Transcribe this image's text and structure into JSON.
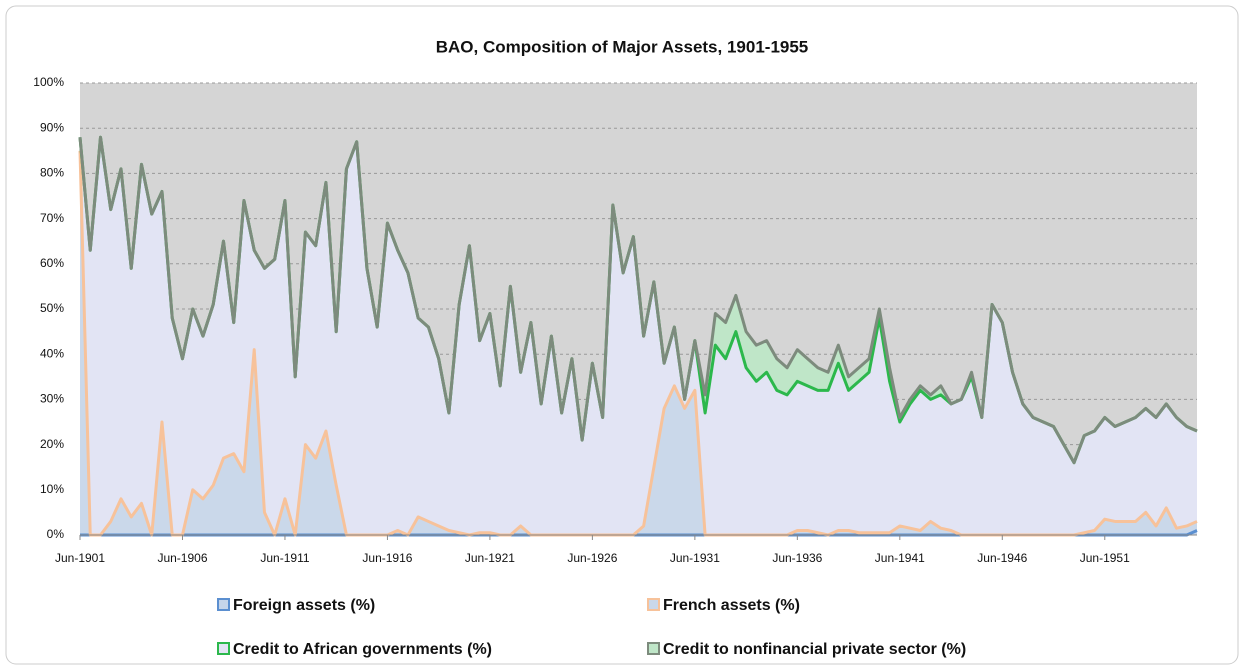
{
  "chart_data": {
    "type": "stacked_area",
    "title": "BAO, Composition of Major Assets, 1901-1955",
    "categories": [
      "Jun-1901",
      null,
      null,
      null,
      null,
      null,
      null,
      null,
      null,
      null,
      "Jun-1906",
      null,
      null,
      null,
      null,
      null,
      null,
      null,
      null,
      null,
      "Jun-1911",
      null,
      null,
      null,
      null,
      null,
      null,
      null,
      null,
      null,
      "Jun-1916",
      null,
      null,
      null,
      null,
      null,
      null,
      null,
      null,
      null,
      "Jun-1921",
      null,
      null,
      null,
      null,
      null,
      null,
      null,
      null,
      null,
      "Jun-1926",
      null,
      null,
      null,
      null,
      null,
      null,
      null,
      null,
      null,
      "Jun-1931",
      null,
      null,
      null,
      null,
      null,
      null,
      null,
      null,
      null,
      "Jun-1936",
      null,
      null,
      null,
      null,
      null,
      null,
      null,
      null,
      null,
      "Jun-1941",
      null,
      null,
      null,
      null,
      null,
      null,
      null,
      null,
      null,
      "Jun-1946",
      null,
      null,
      null,
      null,
      null,
      null,
      null,
      null,
      null,
      "Jun-1951",
      null,
      null,
      null,
      null,
      null,
      null,
      null,
      null,
      null
    ],
    "series": [
      {
        "name": "Foreign assets (%)",
        "color": "#5b8fd0",
        "fill": "#c5d5ea",
        "values": [
          0,
          0,
          0,
          0,
          0,
          0,
          0,
          0,
          0,
          0,
          0,
          0,
          0,
          0,
          0,
          0,
          0,
          0,
          0,
          0,
          0,
          0,
          0,
          0,
          0,
          0,
          0,
          0,
          0,
          0,
          0,
          0,
          0,
          0,
          0,
          0,
          0,
          0,
          0,
          0,
          0,
          0,
          0,
          0,
          0,
          0,
          0,
          0,
          0,
          0,
          0,
          0,
          0,
          0,
          0,
          0,
          0,
          0,
          0,
          0,
          0,
          0,
          0,
          0,
          0,
          0,
          0,
          0,
          0,
          0,
          0,
          0,
          0,
          0,
          0,
          0,
          0,
          0,
          0,
          0,
          0,
          0,
          0,
          0,
          0,
          0,
          0,
          0,
          0,
          0,
          0,
          0,
          0,
          0,
          0,
          0,
          0,
          0,
          0,
          0,
          0,
          0,
          0,
          0,
          0,
          0,
          0,
          0,
          0,
          1
        ]
      },
      {
        "name": "French assets (%)",
        "color": "#f7c29a",
        "fill": "#cad8ea",
        "values": [
          85,
          0,
          0,
          3,
          8,
          4,
          7,
          0,
          25,
          0,
          0,
          10,
          8,
          11,
          17,
          18,
          14,
          41,
          5,
          0,
          8,
          0,
          20,
          17,
          23,
          11,
          0,
          0,
          0,
          0,
          0,
          1,
          0,
          4,
          3,
          2,
          1,
          0.5,
          0,
          0.5,
          0.5,
          0,
          0,
          2,
          0,
          0,
          0,
          0,
          0,
          0,
          0,
          0,
          0,
          0,
          0,
          2,
          15,
          28,
          33,
          28,
          32,
          0,
          0,
          0,
          0,
          0,
          0,
          0,
          0,
          0,
          1,
          1,
          0.5,
          0,
          1,
          1,
          0.5,
          0.5,
          0.5,
          0.5,
          2,
          1.5,
          1,
          3,
          1.5,
          1,
          0,
          0,
          0,
          0,
          0,
          0,
          0,
          0,
          0,
          0,
          0,
          0,
          0.5,
          1,
          3.5,
          3,
          3,
          3,
          5,
          2,
          6,
          1.5,
          2,
          2
        ]
      },
      {
        "name": "Credit to African governments (%)",
        "color": "#2cb84c",
        "fill": "#e2e4f4",
        "values": [
          3,
          63,
          88,
          69,
          73,
          55,
          75,
          71,
          51,
          48,
          39,
          40,
          36,
          40,
          48,
          29,
          60,
          22,
          54,
          61,
          66,
          35,
          47,
          47,
          55,
          34,
          81,
          87,
          59,
          46,
          69,
          62,
          58,
          44,
          43,
          37,
          26,
          50.5,
          64,
          42.5,
          48.5,
          33,
          55,
          34,
          47,
          29,
          44,
          27,
          39,
          21,
          38,
          26,
          73,
          58,
          66,
          42,
          41,
          10,
          13,
          2,
          11,
          27,
          42,
          39,
          45,
          37,
          34,
          36,
          32,
          31,
          33,
          32,
          31.5,
          32,
          37,
          31,
          33.5,
          35.5,
          47.5,
          33.5,
          23,
          27.5,
          31,
          27,
          29.5,
          28,
          30,
          35,
          26,
          51,
          47,
          36,
          29,
          26,
          25,
          24,
          20,
          16,
          21.5,
          22,
          22.5,
          21,
          22,
          23,
          23,
          24,
          23,
          24.5,
          22,
          20
        ]
      },
      {
        "name": "Credit to nonfinancial private sector (%)",
        "color": "#7d8b7d",
        "fill": "#bfe6c8",
        "values": [
          0,
          0,
          0,
          0,
          0,
          0,
          0,
          0,
          0,
          0,
          0,
          0,
          0,
          0,
          0,
          0,
          0,
          0,
          0,
          0,
          0,
          0,
          0,
          0,
          0,
          0,
          0,
          0,
          0,
          0,
          0,
          0,
          0,
          0,
          0,
          0,
          0,
          0,
          0,
          0,
          0,
          0,
          0,
          0,
          0,
          0,
          0,
          0,
          0,
          0,
          0,
          0,
          0,
          0,
          0,
          0,
          0,
          0,
          0,
          0,
          0,
          4,
          7,
          8,
          8,
          8,
          8,
          7,
          7,
          6,
          7,
          6,
          5,
          4,
          4,
          3,
          3,
          3,
          2,
          3,
          1,
          1,
          1,
          1,
          2,
          0,
          0,
          1,
          0,
          0,
          0,
          0,
          0,
          0,
          0,
          0,
          0,
          0,
          0,
          0,
          0,
          0,
          0,
          0,
          0,
          0,
          0,
          0,
          0,
          0
        ]
      }
    ],
    "ylim": [
      0,
      100
    ],
    "yticks": [
      {
        "value": 0,
        "label": "0%"
      },
      {
        "value": 10,
        "label": "10%"
      },
      {
        "value": 20,
        "label": "20%"
      },
      {
        "value": 30,
        "label": "30%"
      },
      {
        "value": 40,
        "label": "40%"
      },
      {
        "value": 50,
        "label": "50%"
      },
      {
        "value": 60,
        "label": "60%"
      },
      {
        "value": 70,
        "label": "70%"
      },
      {
        "value": 80,
        "label": "80%"
      },
      {
        "value": 90,
        "label": "90%"
      },
      {
        "value": 100,
        "label": "100%"
      }
    ],
    "grid": true,
    "background": "#d5d5d5"
  }
}
